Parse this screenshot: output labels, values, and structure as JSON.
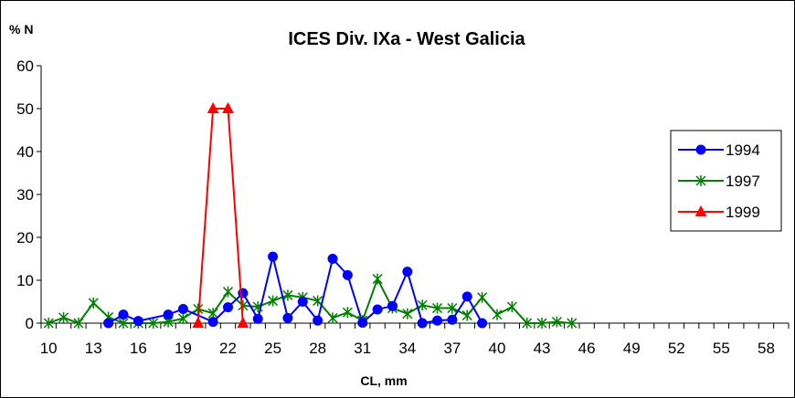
{
  "chart_data": {
    "type": "line",
    "title": "ICES Div. IXa -  West Galicia",
    "ylabel": "% N",
    "xlabel": "CL, mm",
    "ylim": [
      0,
      60
    ],
    "yticks": [
      "0",
      "10",
      "20",
      "30",
      "40",
      "50",
      "60"
    ],
    "xlim": [
      10,
      59
    ],
    "xticks": [
      "10",
      "13",
      "16",
      "19",
      "22",
      "25",
      "28",
      "31",
      "34",
      "37",
      "40",
      "43",
      "46",
      "49",
      "52",
      "55",
      "58"
    ],
    "grid": false,
    "legend_position": "right",
    "series": [
      {
        "name": "1994",
        "color": "#0000ff",
        "marker": "circle",
        "points": [
          [
            14,
            0
          ],
          [
            15,
            2
          ],
          [
            16,
            0.5
          ],
          [
            18,
            2
          ],
          [
            19,
            3.3
          ],
          [
            21,
            0.3
          ],
          [
            22,
            3.7
          ],
          [
            23,
            7
          ],
          [
            24,
            1
          ],
          [
            25,
            15.5
          ],
          [
            26,
            1.2
          ],
          [
            27,
            5
          ],
          [
            28,
            0.6
          ],
          [
            29,
            15
          ],
          [
            30,
            11.2
          ],
          [
            31,
            0.1
          ],
          [
            32,
            3.2
          ],
          [
            33,
            4
          ],
          [
            34,
            12
          ],
          [
            35,
            0
          ],
          [
            36,
            0.6
          ],
          [
            37,
            0.8
          ],
          [
            38,
            6.2
          ],
          [
            39,
            0
          ]
        ]
      },
      {
        "name": "1997",
        "color": "#008000",
        "marker": "x-star",
        "points": [
          [
            10,
            0
          ],
          [
            11,
            1.3
          ],
          [
            12,
            0
          ],
          [
            13,
            4.7
          ],
          [
            14,
            1.4
          ],
          [
            15,
            0
          ],
          [
            16,
            0
          ],
          [
            17,
            0
          ],
          [
            18,
            0.3
          ],
          [
            19,
            1.1
          ],
          [
            20,
            3.3
          ],
          [
            21,
            2.3
          ],
          [
            22,
            7.3
          ],
          [
            23,
            4.1
          ],
          [
            24,
            3.8
          ],
          [
            25,
            5.2
          ],
          [
            26,
            6.5
          ],
          [
            27,
            6
          ],
          [
            28,
            5.2
          ],
          [
            29,
            1.2
          ],
          [
            30,
            2.5
          ],
          [
            31,
            0.6
          ],
          [
            32,
            10.3
          ],
          [
            33,
            3.5
          ],
          [
            34,
            2.2
          ],
          [
            35,
            4.2
          ],
          [
            36,
            3.5
          ],
          [
            37,
            3.5
          ],
          [
            38,
            1.8
          ],
          [
            39,
            6
          ],
          [
            40,
            2
          ],
          [
            41,
            3.8
          ],
          [
            42,
            0
          ],
          [
            43,
            0
          ],
          [
            44,
            0.3
          ],
          [
            45,
            0
          ]
        ]
      },
      {
        "name": "1999",
        "color": "#ff0000",
        "marker": "triangle",
        "points": [
          [
            20,
            0
          ],
          [
            21,
            50
          ],
          [
            22,
            50
          ],
          [
            23,
            0
          ]
        ]
      }
    ]
  }
}
